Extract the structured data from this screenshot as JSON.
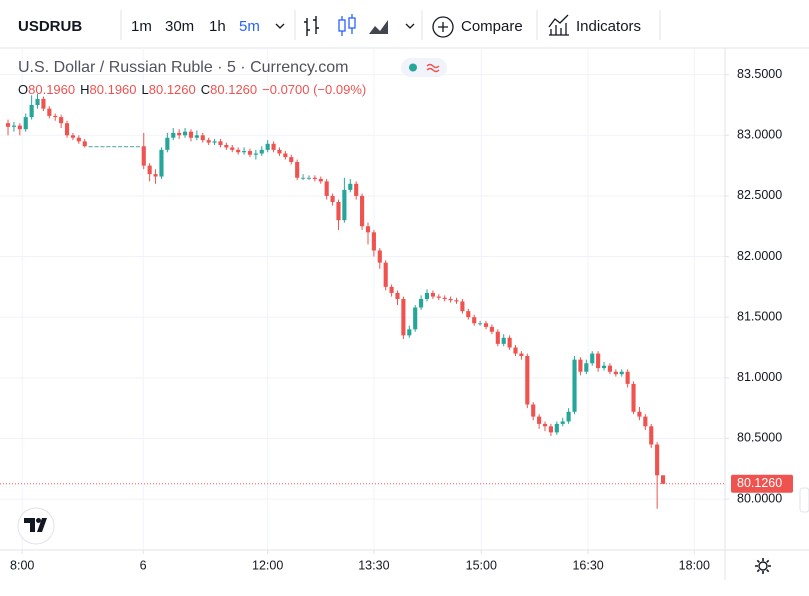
{
  "toolbar": {
    "symbol": "USDRUB",
    "intervals": [
      "1m",
      "30m",
      "1h",
      "5m"
    ],
    "active_interval": 3,
    "compare": "Compare",
    "indicators": "Indicators"
  },
  "chart_data": {
    "type": "candlestick",
    "title": "U.S. Dollar / Russian Ruble · 5 · Currency.com",
    "ohlc_legend": [
      {
        "key": "O",
        "value": "80.1960"
      },
      {
        "key": "H",
        "value": "80.1960"
      },
      {
        "key": "L",
        "value": "80.1260"
      },
      {
        "key": "C",
        "value": "80.1260"
      }
    ],
    "change": "−0.0700 (−0.09%)",
    "up_color": "#26a69a",
    "down_color": "#ef5350",
    "flat_color": "#4fa3a0",
    "open": [
      83.1,
      83.07,
      83.08,
      83.05,
      83.15,
      83.25,
      83.3,
      83.22,
      83.16,
      83.15,
      83.1,
      83.0,
      82.98,
      82.95,
      82.91,
      82.91,
      82.91,
      82.91,
      82.91,
      82.91,
      82.91,
      82.91,
      82.91,
      82.91,
      82.75,
      82.68,
      82.66,
      82.88,
      82.98,
      83.02,
      83.0,
      83.03,
      82.98,
      83.0,
      82.96,
      82.94,
      82.95,
      82.92,
      82.9,
      82.88,
      82.86,
      82.87,
      82.84,
      82.85,
      82.88,
      82.93,
      82.88,
      82.85,
      82.82,
      82.78,
      82.65,
      82.65,
      82.65,
      82.64,
      82.62,
      82.5,
      82.45,
      82.3,
      82.55,
      82.6,
      82.5,
      82.25,
      82.2,
      82.05,
      81.95,
      81.75,
      81.7,
      81.65,
      81.35,
      81.4,
      81.58,
      81.65,
      81.7,
      81.67,
      81.66,
      81.65,
      81.64,
      81.63,
      81.55,
      81.5,
      81.45,
      81.45,
      81.42,
      81.38,
      81.28,
      81.33,
      81.25,
      81.2,
      81.18,
      80.78,
      80.68,
      80.62,
      80.6,
      80.55,
      80.62,
      80.64,
      80.72,
      81.15,
      81.05,
      81.12,
      81.2,
      81.08,
      81.1,
      81.05,
      81.03,
      81.05,
      80.95,
      80.72,
      80.68,
      80.6,
      80.45,
      80.196
    ],
    "high": [
      83.13,
      83.11,
      83.1,
      83.18,
      83.33,
      83.34,
      83.32,
      83.24,
      83.18,
      83.17,
      83.12,
      83.02,
      83.0,
      82.97,
      82.91,
      82.91,
      82.91,
      82.91,
      82.91,
      82.91,
      82.91,
      82.91,
      82.91,
      83.02,
      82.77,
      82.72,
      82.9,
      83.02,
      83.06,
      83.05,
      83.06,
      83.05,
      83.04,
      83.02,
      82.98,
      82.97,
      82.97,
      82.94,
      82.92,
      82.9,
      82.9,
      82.89,
      82.88,
      82.91,
      82.96,
      82.95,
      82.9,
      82.87,
      82.84,
      82.8,
      82.68,
      82.67,
      82.67,
      82.66,
      82.64,
      82.52,
      82.47,
      82.65,
      82.64,
      82.62,
      82.52,
      82.28,
      82.22,
      82.07,
      81.97,
      81.77,
      81.72,
      81.67,
      81.43,
      81.6,
      81.68,
      81.73,
      81.72,
      81.69,
      81.68,
      81.67,
      81.66,
      81.65,
      81.57,
      81.52,
      81.47,
      81.47,
      81.44,
      81.4,
      81.36,
      81.35,
      81.27,
      81.22,
      81.2,
      80.8,
      80.7,
      80.64,
      80.62,
      80.64,
      80.67,
      80.75,
      81.18,
      81.17,
      81.15,
      81.22,
      81.22,
      81.13,
      81.12,
      81.07,
      81.07,
      81.07,
      80.97,
      80.76,
      80.7,
      80.62,
      80.47,
      80.196
    ],
    "low": [
      83.0,
      83.03,
      83.0,
      83.03,
      83.13,
      83.22,
      83.2,
      83.14,
      83.12,
      83.06,
      82.98,
      82.96,
      82.93,
      82.9,
      82.91,
      82.91,
      82.91,
      82.91,
      82.91,
      82.91,
      82.91,
      82.91,
      82.91,
      82.72,
      82.62,
      82.6,
      82.64,
      82.86,
      82.96,
      82.97,
      82.98,
      82.95,
      82.96,
      82.94,
      82.92,
      82.92,
      82.9,
      82.88,
      82.86,
      82.84,
      82.84,
      82.82,
      82.8,
      82.83,
      82.86,
      82.86,
      82.83,
      82.8,
      82.76,
      82.63,
      82.63,
      82.63,
      82.62,
      82.6,
      82.47,
      82.42,
      82.22,
      82.28,
      82.53,
      82.47,
      82.22,
      82.1,
      82.0,
      81.9,
      81.72,
      81.67,
      81.6,
      81.32,
      81.33,
      81.38,
      81.56,
      81.63,
      81.65,
      81.64,
      81.63,
      81.62,
      81.61,
      81.53,
      81.48,
      81.43,
      81.43,
      81.4,
      81.36,
      81.26,
      81.26,
      81.23,
      81.18,
      81.15,
      80.75,
      80.65,
      80.58,
      80.56,
      80.52,
      80.53,
      80.6,
      80.62,
      80.7,
      81.02,
      81.03,
      81.1,
      81.05,
      81.06,
      81.03,
      81.01,
      81.01,
      80.92,
      80.7,
      80.65,
      80.57,
      80.42,
      79.92,
      80.126
    ],
    "close": [
      83.07,
      83.08,
      83.05,
      83.15,
      83.25,
      83.3,
      83.22,
      83.16,
      83.15,
      83.1,
      83.0,
      82.98,
      82.95,
      82.91,
      82.91,
      82.91,
      82.91,
      82.91,
      82.91,
      82.91,
      82.91,
      82.91,
      82.91,
      82.75,
      82.68,
      82.66,
      82.88,
      82.98,
      83.02,
      83.0,
      83.03,
      82.98,
      83.0,
      82.96,
      82.94,
      82.95,
      82.92,
      82.9,
      82.88,
      82.86,
      82.87,
      82.84,
      82.85,
      82.88,
      82.93,
      82.88,
      82.85,
      82.82,
      82.78,
      82.65,
      82.65,
      82.65,
      82.64,
      82.62,
      82.5,
      82.45,
      82.3,
      82.55,
      82.6,
      82.5,
      82.25,
      82.2,
      82.05,
      81.95,
      81.75,
      81.7,
      81.65,
      81.35,
      81.4,
      81.58,
      81.65,
      81.7,
      81.67,
      81.66,
      81.65,
      81.64,
      81.63,
      81.55,
      81.5,
      81.45,
      81.45,
      81.42,
      81.38,
      81.28,
      81.33,
      81.25,
      81.2,
      81.18,
      80.78,
      80.68,
      80.62,
      80.6,
      80.55,
      80.62,
      80.64,
      80.72,
      81.15,
      81.05,
      81.12,
      81.2,
      81.08,
      81.1,
      81.05,
      81.03,
      81.05,
      80.95,
      80.72,
      80.68,
      80.6,
      80.45,
      80.196,
      80.126
    ],
    "last_price": {
      "value": 80.126,
      "label": "80.1260"
    },
    "xlim": [
      -1.36,
      121.5
    ],
    "xticks": [
      {
        "value": 2.4,
        "label": "8:00"
      },
      {
        "value": 22.9,
        "label": "6"
      },
      {
        "value": 44,
        "label": "12:00"
      },
      {
        "value": 62,
        "label": "13:30"
      },
      {
        "value": 80.2,
        "label": "15:00"
      },
      {
        "value": 98.3,
        "label": "16:30"
      },
      {
        "value": 116.3,
        "label": "18:00"
      }
    ],
    "ylim": [
      79.58,
      83.72
    ],
    "yticks": [
      {
        "value": 80,
        "label": "80.0000"
      },
      {
        "value": 80.5,
        "label": "80.5000"
      },
      {
        "value": 81,
        "label": "81.0000"
      },
      {
        "value": 81.5,
        "label": "81.5000"
      },
      {
        "value": 82,
        "label": "82.0000"
      },
      {
        "value": 82.5,
        "label": "82.5000"
      },
      {
        "value": 83,
        "label": "83.0000"
      },
      {
        "value": 83.5,
        "label": "83.5000"
      }
    ],
    "grid": true
  }
}
